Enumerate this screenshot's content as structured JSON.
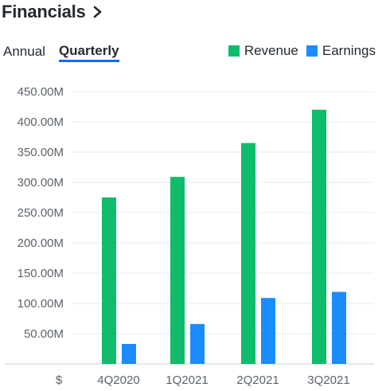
{
  "header": {
    "title": "Financials"
  },
  "tabs": [
    {
      "label": "Annual",
      "active": false
    },
    {
      "label": "Quarterly",
      "active": true
    }
  ],
  "colors": {
    "revenue": "#0ebc6b",
    "earnings": "#1a8cff",
    "tab_underline": "#0f69ff"
  },
  "icons": {
    "header_arrow": "chevron-right-icon"
  },
  "chart_data": {
    "type": "bar",
    "categories": [
      "4Q2020",
      "1Q2021",
      "2Q2021",
      "3Q2021"
    ],
    "series": [
      {
        "name": "Revenue",
        "values": [
          275,
          309,
          365,
          420
        ]
      },
      {
        "name": "Earnings",
        "values": [
          33,
          66,
          109,
          119
        ]
      }
    ],
    "unit": "M",
    "currency_label": "$",
    "ylim": [
      0,
      450
    ],
    "yticks": [
      {
        "value": 50,
        "label": "50.00M"
      },
      {
        "value": 100,
        "label": "100.00M"
      },
      {
        "value": 150,
        "label": "150.00M"
      },
      {
        "value": 200,
        "label": "200.00M"
      },
      {
        "value": 250,
        "label": "250.00M"
      },
      {
        "value": 300,
        "label": "300.00M"
      },
      {
        "value": 350,
        "label": "350.00M"
      },
      {
        "value": 400,
        "label": "400.00M"
      },
      {
        "value": 450,
        "label": "450.00M"
      }
    ],
    "grid": true,
    "legend": "top-right"
  }
}
